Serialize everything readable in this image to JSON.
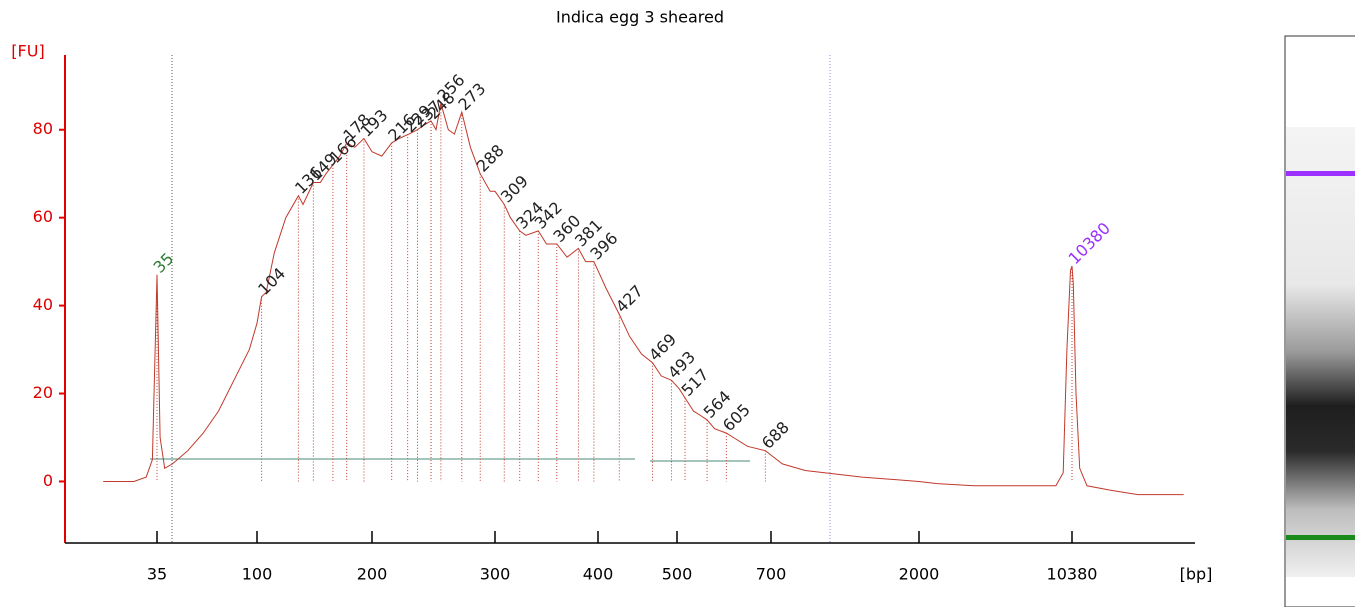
{
  "chart_data": {
    "type": "line",
    "title": "Indica egg 3 sheared",
    "y_label": "[FU]",
    "x_label": "[bp]",
    "color": "#c0392b",
    "axis_color": "#e00000",
    "ylim": [
      -14,
      97
    ],
    "yticks": [
      0,
      20,
      40,
      60,
      80
    ],
    "xticks": [
      35,
      100,
      200,
      300,
      400,
      500,
      700,
      2000,
      10380
    ],
    "x": [
      0,
      20,
      28,
      32,
      35,
      37,
      40,
      45,
      55,
      65,
      75,
      85,
      95,
      100,
      104,
      108,
      115,
      125,
      136,
      140,
      149,
      155,
      160,
      166,
      172,
      178,
      185,
      193,
      200,
      208,
      216,
      222,
      230,
      237,
      242,
      248,
      252,
      256,
      262,
      267,
      273,
      280,
      288,
      296,
      300,
      309,
      315,
      324,
      330,
      342,
      350,
      360,
      370,
      381,
      388,
      396,
      410,
      427,
      440,
      455,
      469,
      480,
      493,
      505,
      517,
      535,
      550,
      564,
      580,
      605,
      620,
      650,
      688,
      700,
      800,
      1000,
      1500,
      2000,
      3000,
      5000,
      8000,
      9500,
      9900,
      10100,
      10300,
      10380,
      10450,
      10600,
      10800,
      11200,
      12500,
      14000,
      16500
    ],
    "values": [
      0,
      0,
      1,
      5,
      47,
      10,
      3,
      4,
      7,
      11,
      16,
      23,
      30,
      36,
      42,
      43,
      52,
      60,
      65,
      63,
      68,
      68,
      70,
      72,
      74,
      77,
      76,
      78,
      75,
      74,
      77,
      78,
      79,
      80,
      81,
      82,
      80,
      86,
      80,
      79,
      84,
      76,
      70,
      66,
      66,
      63,
      60,
      57,
      56,
      57,
      54,
      54,
      51,
      53,
      50,
      50,
      44,
      38,
      33,
      29,
      27,
      24,
      23,
      21,
      19,
      16,
      15,
      14,
      12,
      11,
      10,
      8,
      7,
      6,
      4,
      2.5,
      1,
      0,
      -0.5,
      -1,
      -1,
      -1,
      2,
      30,
      48,
      49,
      45,
      20,
      3,
      -1,
      -2,
      -3,
      -3
    ],
    "peaks": {
      "bp": [
        35,
        104,
        136,
        149,
        166,
        178,
        193,
        216,
        229,
        237,
        248,
        256,
        273,
        288,
        309,
        324,
        342,
        360,
        381,
        396,
        427,
        469,
        493,
        517,
        564,
        605,
        688,
        10380
      ],
      "fu": [
        47,
        42,
        65,
        68,
        72,
        77,
        78,
        77,
        79,
        80,
        82,
        86,
        84,
        70,
        63,
        57,
        57,
        54,
        53,
        50,
        38,
        27,
        23,
        19,
        14,
        11,
        7,
        49
      ],
      "colors": [
        "#2e7d32",
        "#222222",
        "#222222",
        "#222222",
        "#222222",
        "#222222",
        "#222222",
        "#222222",
        "#222222",
        "#222222",
        "#222222",
        "#222222",
        "#222222",
        "#222222",
        "#222222",
        "#222222",
        "#222222",
        "#222222",
        "#222222",
        "#222222",
        "#222222",
        "#222222",
        "#222222",
        "#222222",
        "#222222",
        "#222222",
        "#222222",
        "#9b30ff"
      ]
    }
  }
}
